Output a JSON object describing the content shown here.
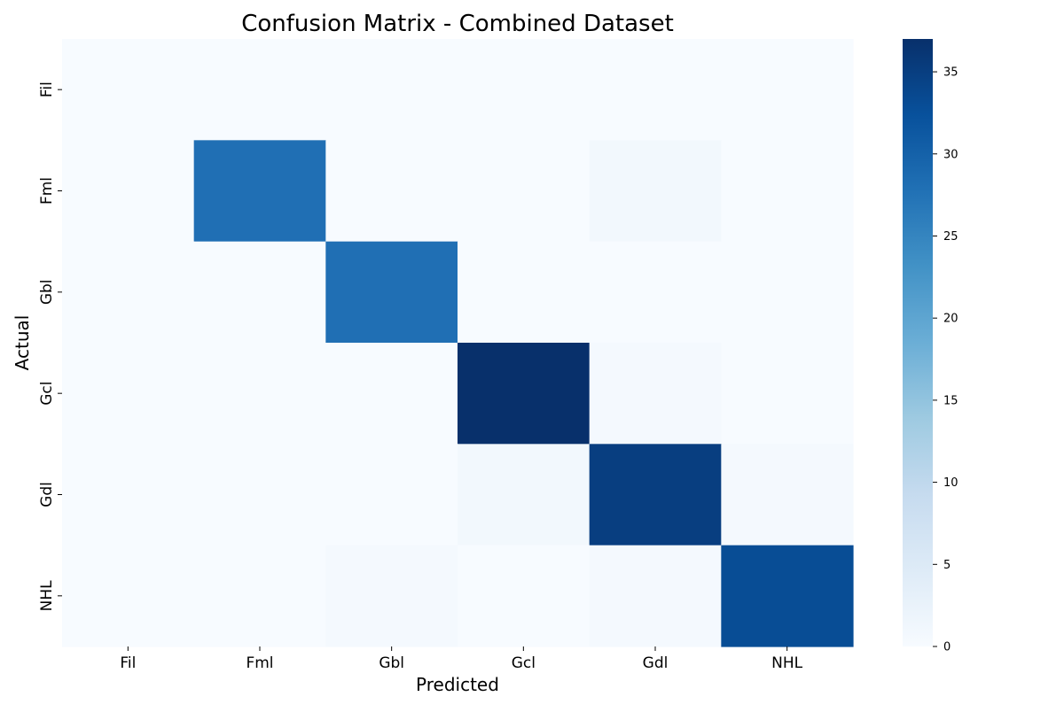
{
  "chart_data": {
    "type": "heatmap",
    "title": "Confusion Matrix - Combined Dataset",
    "xlabel": "Predicted",
    "ylabel": "Actual",
    "x_categories": [
      "Fil",
      "Fml",
      "Gbl",
      "Gcl",
      "Gdl",
      "NHL"
    ],
    "y_categories": [
      "Fil",
      "Fml",
      "Gbl",
      "Gcl",
      "Gdl",
      "NHL"
    ],
    "values": [
      [
        0,
        0,
        0,
        0,
        0,
        0
      ],
      [
        0,
        28,
        0,
        0,
        1,
        0
      ],
      [
        0,
        0,
        28,
        0,
        0,
        0
      ],
      [
        0,
        0,
        0,
        37,
        0.5,
        0
      ],
      [
        0,
        0,
        0,
        1,
        35,
        0.5
      ],
      [
        0,
        0,
        0.5,
        0,
        0.5,
        33
      ]
    ],
    "colormap": "Blues",
    "colorbar": {
      "min": 0,
      "max": 37,
      "ticks": [
        0,
        5,
        10,
        15,
        20,
        25,
        30,
        35
      ]
    },
    "grid": false
  }
}
